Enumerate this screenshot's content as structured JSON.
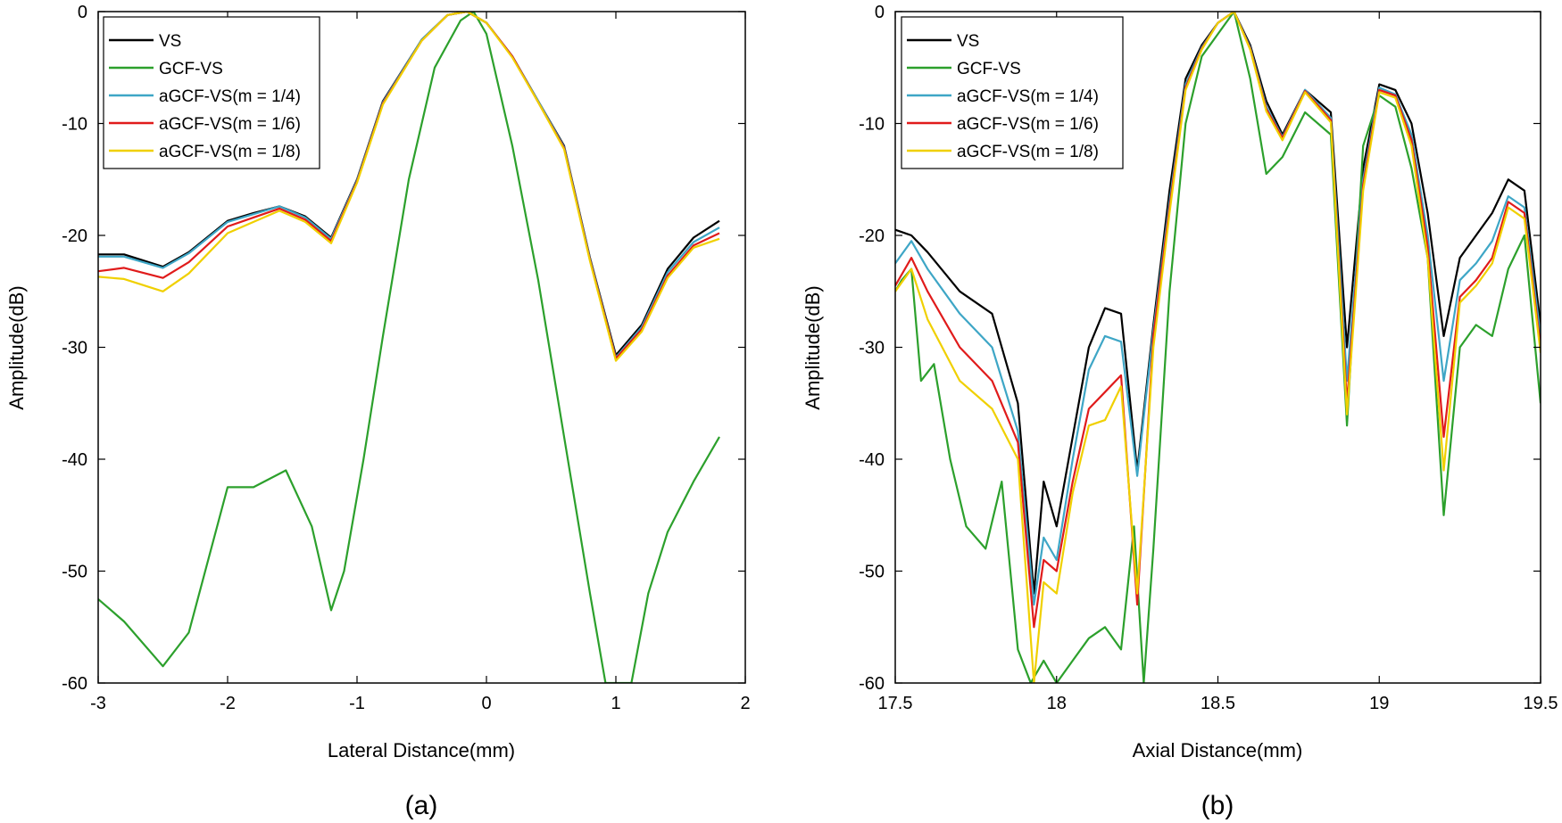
{
  "colors": {
    "VS": "#000000",
    "GCF-VS": "#2ca02c",
    "aGCF-VS(m = 1/4)": "#3ea6c6",
    "aGCF-VS(m = 1/6)": "#e01b1b",
    "aGCF-VS(m = 1/8)": "#f0d000"
  },
  "chart_data": [
    {
      "type": "line",
      "panel_label": "(a)",
      "xlabel": "Lateral Distance(mm)",
      "ylabel": "Amplitude(dB)",
      "xlim": [
        -3,
        2
      ],
      "ylim": [
        -60,
        0
      ],
      "xticks": [
        -3,
        -2,
        -1,
        0,
        1,
        2
      ],
      "xtick_labels": [
        "-3",
        "-2",
        "-1",
        "0",
        "1",
        "2"
      ],
      "yticks": [
        -60,
        -50,
        -40,
        -30,
        -20,
        -10,
        0
      ],
      "ytick_labels": [
        "-60",
        "-50",
        "-40",
        "-30",
        "-20",
        "-10",
        "0"
      ],
      "legend_position": "top-left",
      "series": [
        {
          "name": "VS",
          "x": [
            -3,
            -2.8,
            -2.5,
            -2.3,
            -2.0,
            -1.8,
            -1.6,
            -1.4,
            -1.2,
            -1.0,
            -0.8,
            -0.5,
            -0.3,
            -0.15,
            0.0,
            0.2,
            0.4,
            0.6,
            0.8,
            1.0,
            1.2,
            1.4,
            1.6,
            1.8
          ],
          "values": [
            -21.7,
            -21.7,
            -22.8,
            -21.5,
            -18.7,
            -18.0,
            -17.4,
            -18.3,
            -20.2,
            -15.0,
            -8.0,
            -2.5,
            -0.3,
            0.0,
            -1.0,
            -4.0,
            -8.0,
            -12.0,
            -22.0,
            -30.7,
            -28.0,
            -23.0,
            -20.2,
            -18.7
          ]
        },
        {
          "name": "GCF-VS",
          "x": [
            -3,
            -2.8,
            -2.5,
            -2.3,
            -2.0,
            -1.8,
            -1.55,
            -1.35,
            -1.2,
            -1.1,
            -0.95,
            -0.8,
            -0.6,
            -0.4,
            -0.2,
            -0.1,
            0.0,
            0.2,
            0.4,
            0.6,
            0.8,
            0.92,
            1.12,
            1.25,
            1.4,
            1.6,
            1.8
          ],
          "values": [
            -52.5,
            -54.5,
            -58.5,
            -55.5,
            -42.5,
            -42.5,
            -41.0,
            -46.0,
            -53.5,
            -50.0,
            -40.0,
            -29.0,
            -15.0,
            -5.0,
            -0.8,
            0.0,
            -2.0,
            -12.0,
            -24.0,
            -38.0,
            -52.0,
            -60.0,
            -60.0,
            -52.0,
            -46.5,
            -42.0,
            -38.0
          ]
        },
        {
          "name": "aGCF-VS(m = 1/4)",
          "x": [
            -3,
            -2.8,
            -2.5,
            -2.3,
            -2.0,
            -1.8,
            -1.6,
            -1.4,
            -1.2,
            -1.0,
            -0.8,
            -0.5,
            -0.3,
            -0.15,
            0.0,
            0.2,
            0.4,
            0.6,
            0.8,
            1.0,
            1.2,
            1.4,
            1.6,
            1.8
          ],
          "values": [
            -21.9,
            -21.9,
            -22.9,
            -21.6,
            -18.8,
            -18.1,
            -17.4,
            -18.4,
            -20.3,
            -15.1,
            -8.1,
            -2.5,
            -0.3,
            0.0,
            -1.0,
            -4.0,
            -8.0,
            -12.1,
            -22.1,
            -30.9,
            -28.2,
            -23.3,
            -20.6,
            -19.3
          ]
        },
        {
          "name": "aGCF-VS(m = 1/6)",
          "x": [
            -3,
            -2.8,
            -2.5,
            -2.3,
            -2.0,
            -1.8,
            -1.6,
            -1.4,
            -1.2,
            -1.0,
            -0.8,
            -0.5,
            -0.3,
            -0.15,
            0.0,
            0.2,
            0.4,
            0.6,
            0.8,
            1.0,
            1.2,
            1.4,
            1.6,
            1.8
          ],
          "values": [
            -23.2,
            -22.9,
            -23.8,
            -22.4,
            -19.2,
            -18.4,
            -17.6,
            -18.6,
            -20.5,
            -15.2,
            -8.2,
            -2.6,
            -0.3,
            0.0,
            -1.0,
            -4.0,
            -8.1,
            -12.2,
            -22.2,
            -31.0,
            -28.4,
            -23.6,
            -20.9,
            -19.8
          ]
        },
        {
          "name": "aGCF-VS(m = 1/8)",
          "x": [
            -3,
            -2.8,
            -2.5,
            -2.3,
            -2.0,
            -1.8,
            -1.6,
            -1.4,
            -1.2,
            -1.0,
            -0.8,
            -0.5,
            -0.3,
            -0.15,
            0.0,
            0.2,
            0.4,
            0.6,
            0.8,
            1.0,
            1.2,
            1.4,
            1.6,
            1.8
          ],
          "values": [
            -23.7,
            -23.9,
            -25.0,
            -23.4,
            -19.8,
            -18.8,
            -17.8,
            -18.8,
            -20.7,
            -15.3,
            -8.3,
            -2.6,
            -0.3,
            0.0,
            -1.0,
            -4.1,
            -8.1,
            -12.3,
            -22.3,
            -31.2,
            -28.6,
            -23.8,
            -21.1,
            -20.3
          ]
        }
      ]
    },
    {
      "type": "line",
      "panel_label": "(b)",
      "xlabel": "Axial Distance(mm)",
      "ylabel": "Amplitude(dB)",
      "xlim": [
        17.5,
        19.5
      ],
      "ylim": [
        -60,
        0
      ],
      "xticks": [
        17.5,
        18,
        18.5,
        19,
        19.5
      ],
      "xtick_labels": [
        "17.5",
        "18",
        "18.5",
        "19",
        "19.5"
      ],
      "yticks": [
        -60,
        -50,
        -40,
        -30,
        -20,
        -10,
        0
      ],
      "ytick_labels": [
        "-60",
        "-50",
        "-40",
        "-30",
        "-20",
        "-10",
        "0"
      ],
      "legend_position": "top-left",
      "series": [
        {
          "name": "VS",
          "x": [
            17.5,
            17.55,
            17.6,
            17.7,
            17.8,
            17.88,
            17.93,
            17.96,
            18.0,
            18.05,
            18.1,
            18.15,
            18.2,
            18.25,
            18.3,
            18.35,
            18.4,
            18.45,
            18.5,
            18.55,
            18.6,
            18.65,
            18.7,
            18.77,
            18.85,
            18.9,
            18.95,
            19.0,
            19.05,
            19.1,
            19.15,
            19.2,
            19.25,
            19.3,
            19.35,
            19.4,
            19.45,
            19.5
          ],
          "values": [
            -19.5,
            -20.0,
            -21.5,
            -25.0,
            -27.0,
            -35.0,
            -52.0,
            -42.0,
            -46.0,
            -38.0,
            -30.0,
            -26.5,
            -27.0,
            -41.0,
            -28.0,
            -16.0,
            -6.0,
            -3.0,
            -1.0,
            0.0,
            -3.0,
            -8.0,
            -11.0,
            -7.0,
            -9.0,
            -30.0,
            -14.0,
            -6.5,
            -7.0,
            -10.0,
            -18.0,
            -29.0,
            -22.0,
            -20.0,
            -18.0,
            -15.0,
            -16.0,
            -28.0
          ]
        },
        {
          "name": "GCF-VS",
          "x": [
            17.5,
            17.52,
            17.55,
            17.58,
            17.62,
            17.67,
            17.72,
            17.78,
            17.83,
            17.88,
            17.92,
            17.96,
            18.0,
            18.05,
            18.1,
            18.15,
            18.2,
            18.24,
            18.27,
            18.3,
            18.35,
            18.4,
            18.45,
            18.5,
            18.55,
            18.6,
            18.65,
            18.7,
            18.77,
            18.85,
            18.9,
            18.95,
            19.0,
            19.05,
            19.1,
            19.15,
            19.2,
            19.25,
            19.3,
            19.35,
            19.4,
            19.45,
            19.5
          ],
          "values": [
            -25.0,
            -24.0,
            -23.0,
            -33.0,
            -31.5,
            -40.0,
            -46.0,
            -48.0,
            -42.0,
            -57.0,
            -60.0,
            -58.0,
            -60.0,
            -58.0,
            -56.0,
            -55.0,
            -57.0,
            -46.0,
            -60.0,
            -48.0,
            -25.0,
            -10.0,
            -4.0,
            -2.0,
            0.0,
            -6.0,
            -14.5,
            -13.0,
            -9.0,
            -11.0,
            -37.0,
            -12.0,
            -7.5,
            -8.5,
            -14.0,
            -22.0,
            -45.0,
            -30.0,
            -28.0,
            -29.0,
            -23.0,
            -20.0,
            -35.0
          ]
        },
        {
          "name": "aGCF-VS(m = 1/4)",
          "x": [
            17.5,
            17.55,
            17.6,
            17.7,
            17.8,
            17.88,
            17.93,
            17.96,
            18.0,
            18.05,
            18.1,
            18.15,
            18.2,
            18.25,
            18.3,
            18.35,
            18.4,
            18.45,
            18.5,
            18.55,
            18.6,
            18.65,
            18.7,
            18.77,
            18.85,
            18.9,
            18.95,
            19.0,
            19.05,
            19.1,
            19.15,
            19.2,
            19.25,
            19.3,
            19.35,
            19.4,
            19.45,
            19.5
          ],
          "values": [
            -22.5,
            -20.5,
            -23.0,
            -27.0,
            -30.0,
            -37.5,
            -53.0,
            -47.0,
            -49.0,
            -40.0,
            -32.0,
            -29.0,
            -29.5,
            -41.5,
            -28.5,
            -17.0,
            -6.5,
            -3.2,
            -1.0,
            0.0,
            -3.2,
            -8.5,
            -11.2,
            -7.0,
            -9.5,
            -33.0,
            -15.0,
            -6.8,
            -7.4,
            -11.0,
            -20.0,
            -33.0,
            -24.0,
            -22.5,
            -20.5,
            -16.5,
            -17.5,
            -29.0
          ]
        },
        {
          "name": "aGCF-VS(m = 1/6)",
          "x": [
            17.5,
            17.55,
            17.6,
            17.7,
            17.8,
            17.88,
            17.93,
            17.96,
            18.0,
            18.05,
            18.1,
            18.15,
            18.2,
            18.25,
            18.3,
            18.35,
            18.4,
            18.45,
            18.5,
            18.55,
            18.6,
            18.65,
            18.7,
            18.77,
            18.85,
            18.9,
            18.95,
            19.0,
            19.05,
            19.1,
            19.15,
            19.2,
            19.25,
            19.3,
            19.35,
            19.4,
            19.45,
            19.5
          ],
          "values": [
            -24.5,
            -22.0,
            -25.0,
            -30.0,
            -33.0,
            -38.5,
            -55.0,
            -49.0,
            -50.0,
            -42.0,
            -35.5,
            -34.0,
            -32.5,
            -53.0,
            -29.0,
            -17.5,
            -6.8,
            -3.3,
            -1.0,
            0.0,
            -3.3,
            -8.7,
            -11.3,
            -7.1,
            -9.7,
            -35.0,
            -15.5,
            -7.0,
            -7.5,
            -11.5,
            -21.0,
            -38.0,
            -25.5,
            -24.0,
            -22.0,
            -17.0,
            -18.0,
            -30.0
          ]
        },
        {
          "name": "aGCF-VS(m = 1/8)",
          "x": [
            17.5,
            17.55,
            17.6,
            17.7,
            17.8,
            17.88,
            17.93,
            17.96,
            18.0,
            18.05,
            18.1,
            18.15,
            18.2,
            18.25,
            18.3,
            18.35,
            18.4,
            18.45,
            18.5,
            18.55,
            18.6,
            18.65,
            18.7,
            18.77,
            18.85,
            18.9,
            18.95,
            19.0,
            19.05,
            19.1,
            19.15,
            19.2,
            19.25,
            19.3,
            19.35,
            19.4,
            19.45,
            19.5
          ],
          "values": [
            -25.0,
            -23.0,
            -27.5,
            -33.0,
            -35.5,
            -40.0,
            -60.0,
            -51.0,
            -52.0,
            -43.0,
            -37.0,
            -36.5,
            -33.5,
            -52.0,
            -30.0,
            -18.0,
            -7.0,
            -3.4,
            -1.0,
            0.0,
            -3.4,
            -8.9,
            -11.5,
            -7.2,
            -9.9,
            -36.0,
            -16.0,
            -7.2,
            -7.7,
            -12.0,
            -22.0,
            -41.0,
            -26.0,
            -24.5,
            -22.5,
            -17.5,
            -18.5,
            -30.5
          ]
        }
      ]
    }
  ]
}
